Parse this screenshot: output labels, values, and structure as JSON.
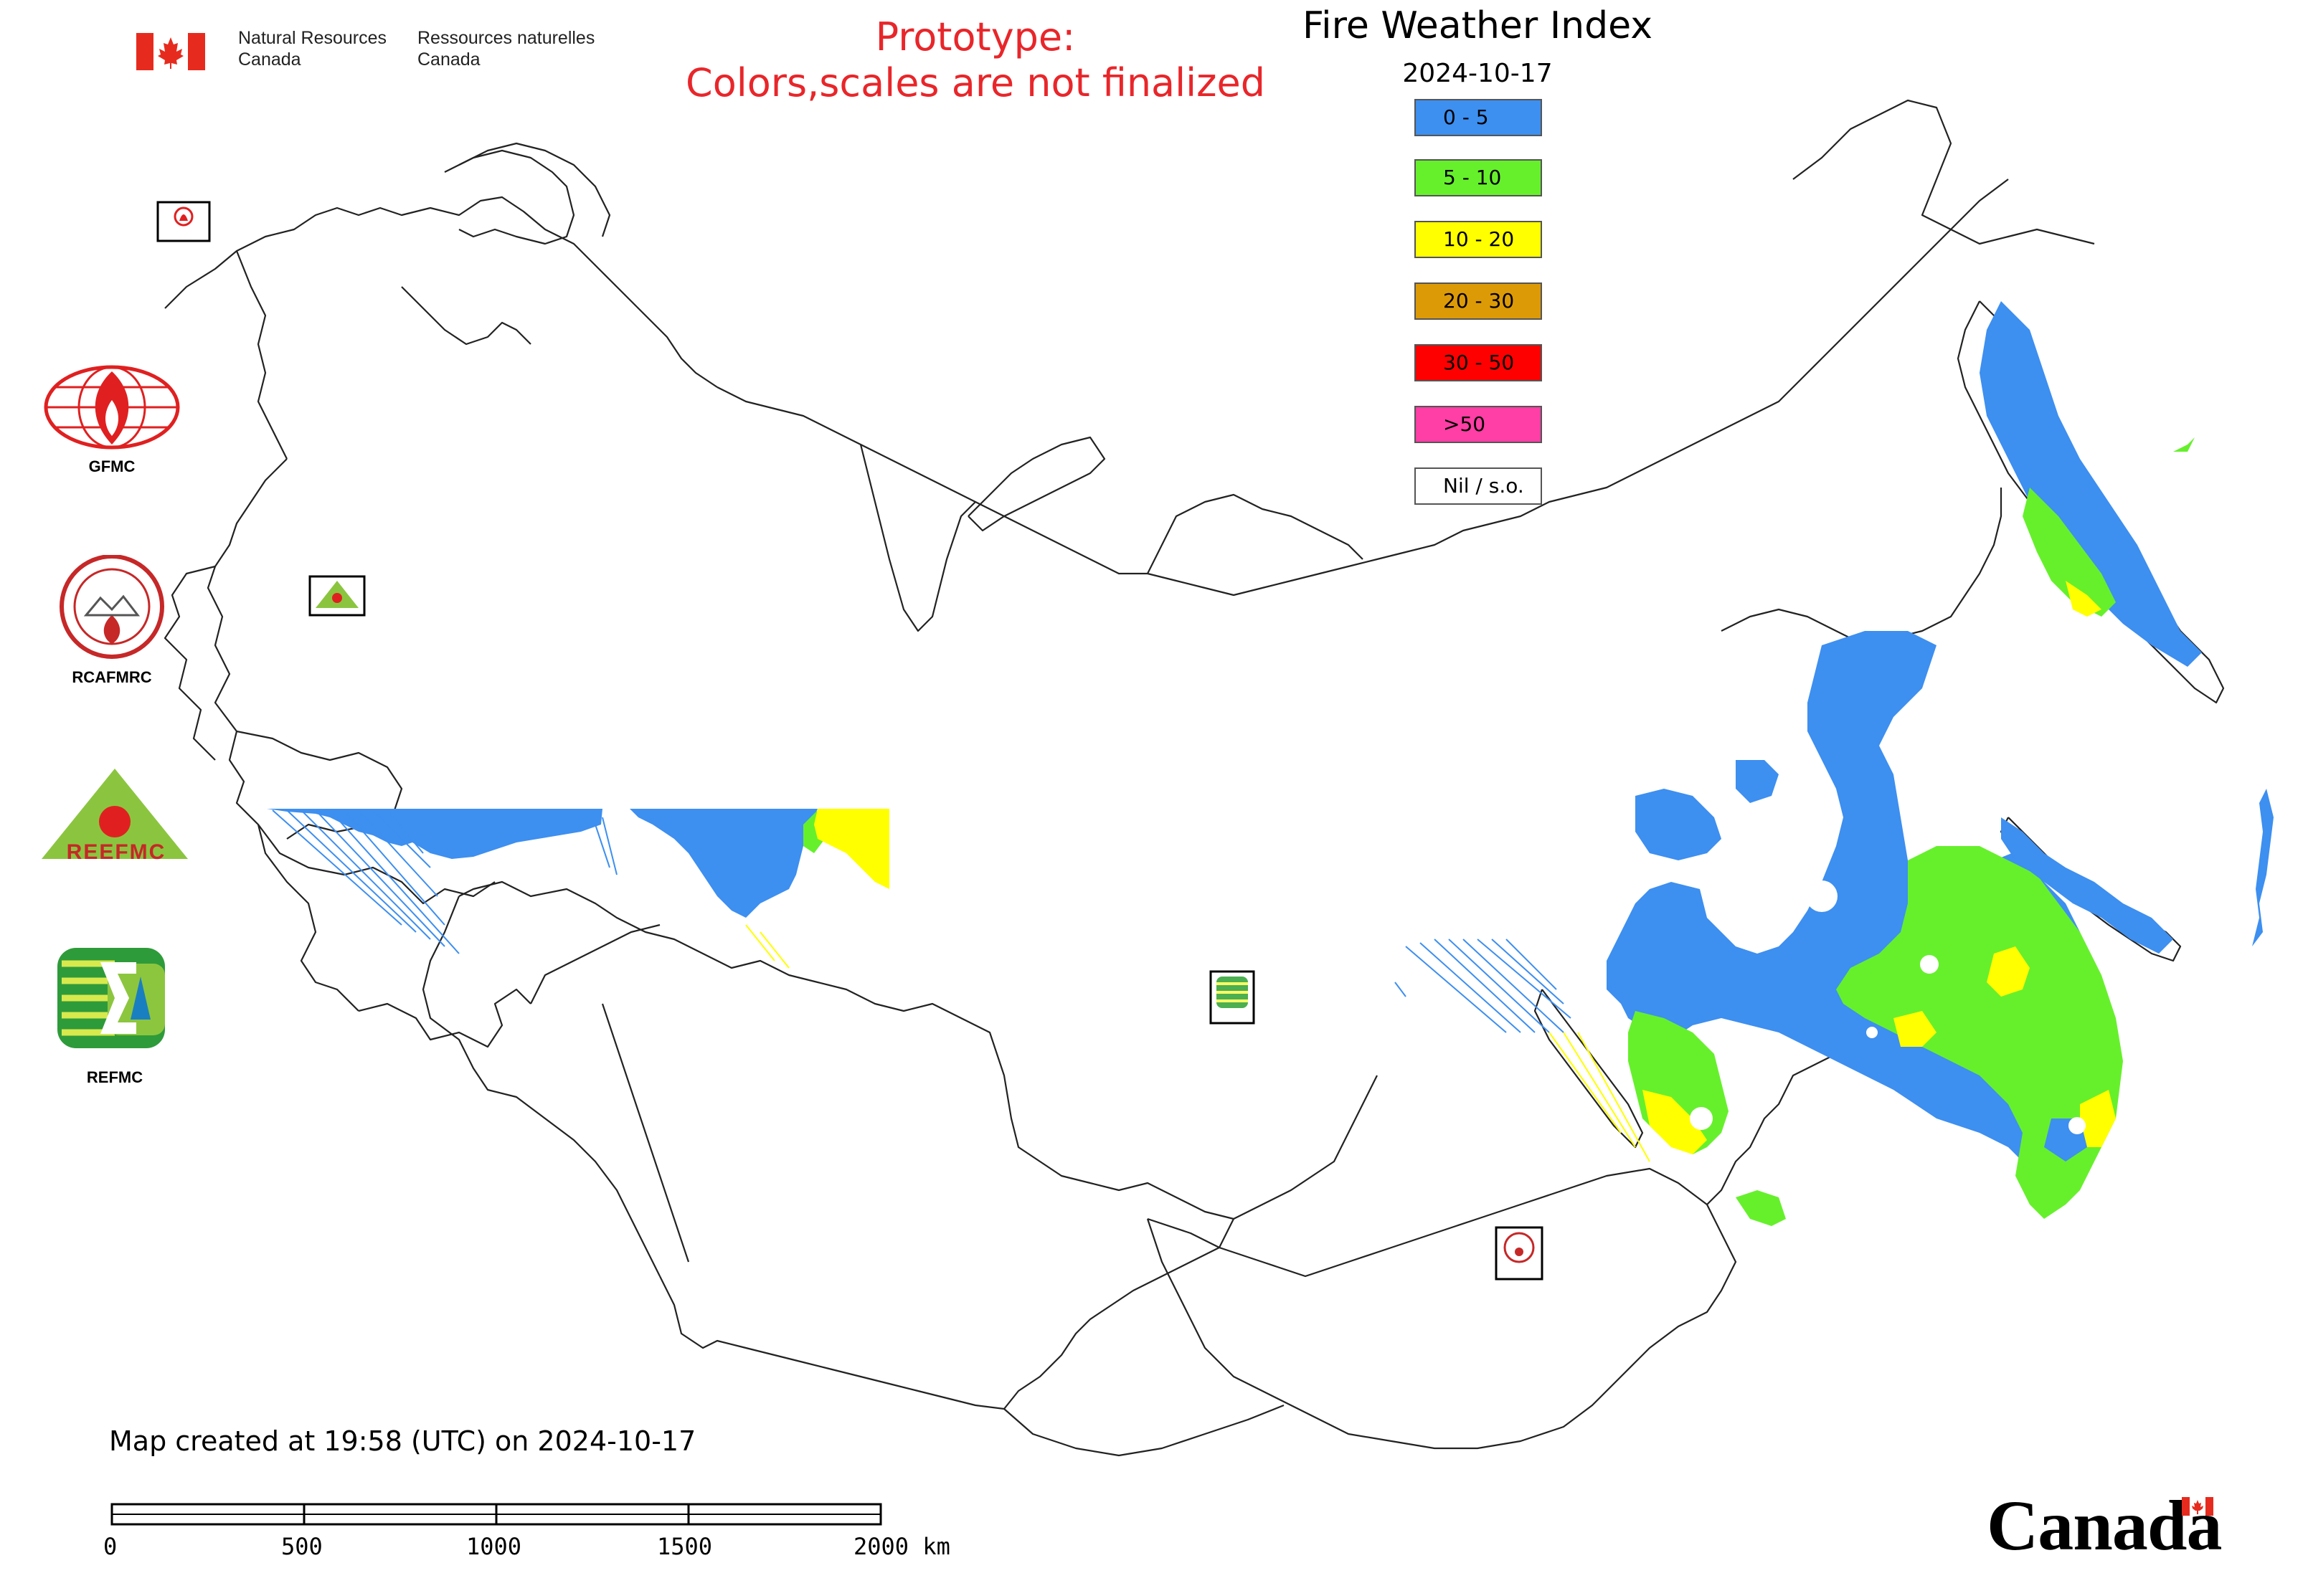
{
  "header": {
    "nrcan_en_line1": "Natural Resources",
    "nrcan_en_line2": "Canada",
    "nrcan_fr_line1": "Ressources naturelles",
    "nrcan_fr_line2": "Canada",
    "prototype_line1": "Prototype:",
    "prototype_line2": "Colors,scales are not finalized",
    "title": "Fire Weather Index",
    "date": "2024-10-17"
  },
  "legend": [
    {
      "label": "0 - 5",
      "color": "#3d8ff0"
    },
    {
      "label": "5 - 10",
      "color": "#66f02c"
    },
    {
      "label": "10 - 20",
      "color": "#ffff00"
    },
    {
      "label": "20 - 30",
      "color": "#dd9a07"
    },
    {
      "label": "30 - 50",
      "color": "#ff0000"
    },
    {
      "label": ">50",
      "color": "#ff3ea6"
    },
    {
      "label": "Nil / s.o.",
      "color": "#ffffff"
    }
  ],
  "organizations": {
    "gfmc": "GFMC",
    "rcafmrc": "RCAFMRC",
    "reefmc": "REEFMC",
    "refmc": "REFMC",
    "reefmc_logo_text": "REEFMC"
  },
  "footer": {
    "created": "Map created at 19:58 (UTC) on 2024-10-17",
    "canada_wordmark": "Canada"
  },
  "scale_bar": {
    "ticks": [
      "0",
      "500",
      "1000",
      "1500",
      "2000 km"
    ]
  }
}
